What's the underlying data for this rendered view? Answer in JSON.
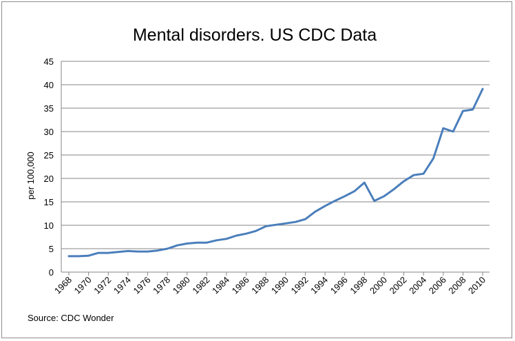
{
  "chart_data": {
    "type": "line",
    "title": "Mental disorders. US CDC Data",
    "xlabel": "",
    "ylabel": "per 100,000",
    "source": "Source:  CDC Wonder",
    "ylim": [
      0,
      45
    ],
    "yticks": [
      0,
      5,
      10,
      15,
      20,
      25,
      30,
      35,
      40,
      45
    ],
    "xtick_labels": [
      "1968",
      "1970",
      "1972",
      "1974",
      "1976",
      "1978",
      "1980",
      "1982",
      "1984",
      "1986",
      "1988",
      "1990",
      "1992",
      "1994",
      "1996",
      "1998",
      "2000",
      "2002",
      "2004",
      "2006",
      "2008",
      "2010"
    ],
    "grid": true,
    "legend": "none",
    "line_color": "#4a7ebb",
    "series": [
      {
        "x": [
          1968,
          1969,
          1970,
          1971,
          1972,
          1973,
          1974,
          1975,
          1976,
          1977,
          1978,
          1979,
          1980,
          1981,
          1982,
          1983,
          1984,
          1985,
          1986,
          1987,
          1988,
          1989,
          1990,
          1991,
          1992,
          1993,
          1994,
          1995,
          1996,
          1997,
          1998,
          1999,
          2000,
          2001,
          2002,
          2003,
          2004,
          2005,
          2006,
          2007,
          2008,
          2009,
          2010
        ],
        "values": [
          3.4,
          3.4,
          3.5,
          4.1,
          4.1,
          4.3,
          4.5,
          4.4,
          4.4,
          4.6,
          5.0,
          5.7,
          6.1,
          6.3,
          6.3,
          6.8,
          7.1,
          7.8,
          8.2,
          8.8,
          9.8,
          10.1,
          10.4,
          10.7,
          11.3,
          12.9,
          14.1,
          15.2,
          16.2,
          17.3,
          19.1,
          15.2,
          16.2,
          17.7,
          19.4,
          20.7,
          21.0,
          24.3,
          30.7,
          30.0,
          34.4,
          34.7,
          39.1
        ]
      }
    ]
  }
}
